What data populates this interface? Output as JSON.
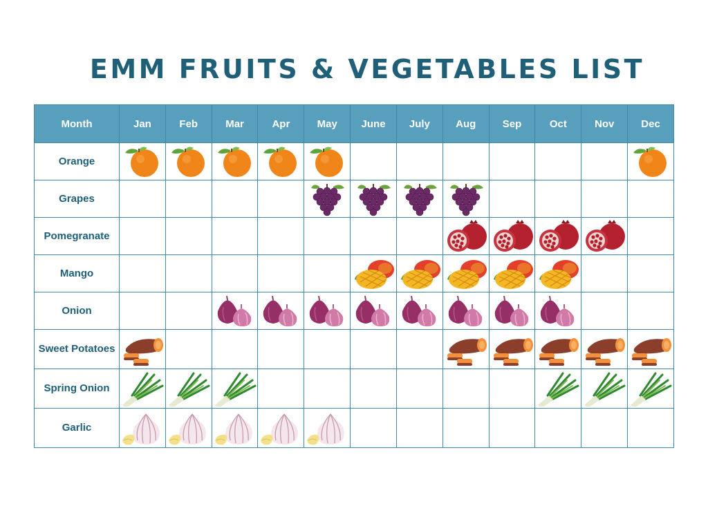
{
  "title": "EMM FRUITS & VEGETABLES LIST",
  "header": {
    "first": "Month",
    "months": [
      "Jan",
      "Feb",
      "Mar",
      "Apr",
      "May",
      "June",
      "July",
      "Aug",
      "Sep",
      "Oct",
      "Nov",
      "Dec"
    ]
  },
  "rows": [
    {
      "label": "Orange",
      "icon": "orange-icon",
      "months": [
        1,
        1,
        1,
        1,
        1,
        0,
        0,
        0,
        0,
        0,
        0,
        1
      ]
    },
    {
      "label": "Grapes",
      "icon": "grapes-icon",
      "months": [
        0,
        0,
        0,
        0,
        1,
        1,
        1,
        1,
        0,
        0,
        0,
        0
      ]
    },
    {
      "label": "Pomegranate",
      "icon": "pomegranate-icon",
      "months": [
        0,
        0,
        0,
        0,
        0,
        0,
        0,
        1,
        1,
        1,
        1,
        0
      ]
    },
    {
      "label": "Mango",
      "icon": "mango-icon",
      "months": [
        0,
        0,
        0,
        0,
        0,
        1,
        1,
        1,
        1,
        1,
        0,
        0
      ]
    },
    {
      "label": "Onion",
      "icon": "onion-icon",
      "months": [
        0,
        0,
        1,
        1,
        1,
        1,
        1,
        1,
        1,
        1,
        0,
        0
      ]
    },
    {
      "label": "Sweet Potatoes",
      "icon": "sweet-potato-icon",
      "months": [
        1,
        0,
        0,
        0,
        0,
        0,
        0,
        1,
        1,
        1,
        1,
        1
      ]
    },
    {
      "label": "Spring Onion",
      "icon": "spring-onion-icon",
      "months": [
        1,
        1,
        1,
        0,
        0,
        0,
        0,
        0,
        0,
        1,
        1,
        1
      ]
    },
    {
      "label": "Garlic",
      "icon": "garlic-icon",
      "months": [
        1,
        1,
        1,
        1,
        1,
        0,
        0,
        0,
        0,
        0,
        0,
        0
      ]
    }
  ],
  "colors": {
    "title": "#1f5f78",
    "header_bg": "#589fbd",
    "header_text": "#ffffff",
    "grid_line": "#3f89a8",
    "row_label": "#1f5f78"
  }
}
